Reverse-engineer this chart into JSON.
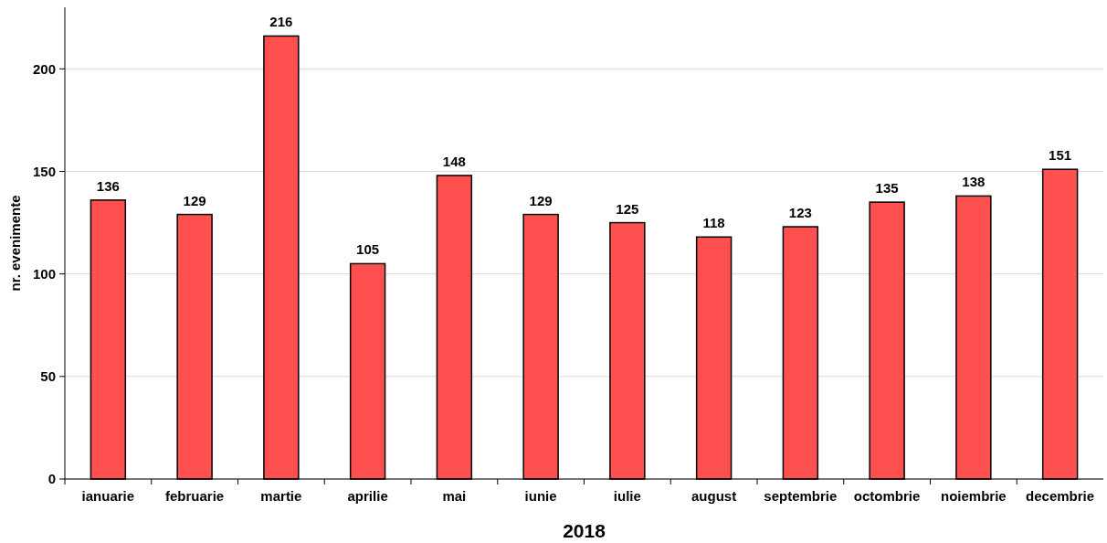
{
  "chart_data": {
    "type": "bar",
    "xlabel": "2018",
    "ylabel": "nr. evenimente",
    "categories": [
      "ianuarie",
      "februarie",
      "martie",
      "aprilie",
      "mai",
      "iunie",
      "iulie",
      "august",
      "septembrie",
      "octombrie",
      "noiembrie",
      "decembrie"
    ],
    "values": [
      136,
      129,
      216,
      105,
      148,
      129,
      125,
      118,
      123,
      135,
      138,
      151
    ],
    "color": "#ff5050",
    "ylim": [
      0,
      230
    ],
    "yticks": [
      0,
      50,
      100,
      150,
      200
    ],
    "grid": "y",
    "data_labels": true
  }
}
